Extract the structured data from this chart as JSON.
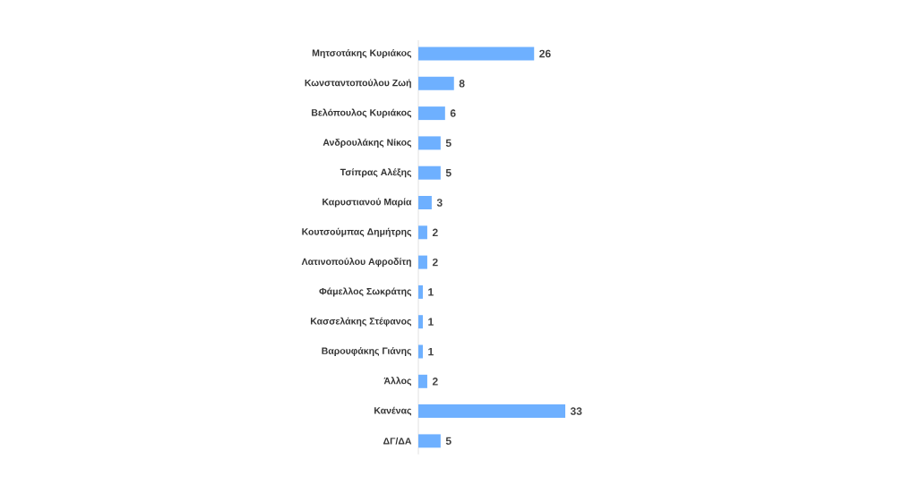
{
  "chart_data": {
    "type": "bar",
    "orientation": "horizontal",
    "data_labels": true,
    "categories": [
      "Μητσοτάκης Κυριάκος",
      "Κωνσταντοπούλου Ζωή",
      "Βελόπουλος Κυριάκος",
      "Ανδρουλάκης Νίκος",
      "Τσίπρας Αλέξης",
      "Καρυστιανού Μαρία",
      "Κουτσούμπας Δημήτρης",
      "Λατινοπούλου Αφροδίτη",
      "Φάμελλος Σωκράτης",
      "Κασσελάκης Στέφανος",
      "Βαρουφάκης Γιάνης",
      "Άλλος",
      "Κανένας",
      "ΔΓ/ΔΑ"
    ],
    "values": [
      26,
      8,
      6,
      5,
      5,
      3,
      2,
      2,
      1,
      1,
      1,
      2,
      33,
      5
    ],
    "color": "#6eb0ff"
  }
}
